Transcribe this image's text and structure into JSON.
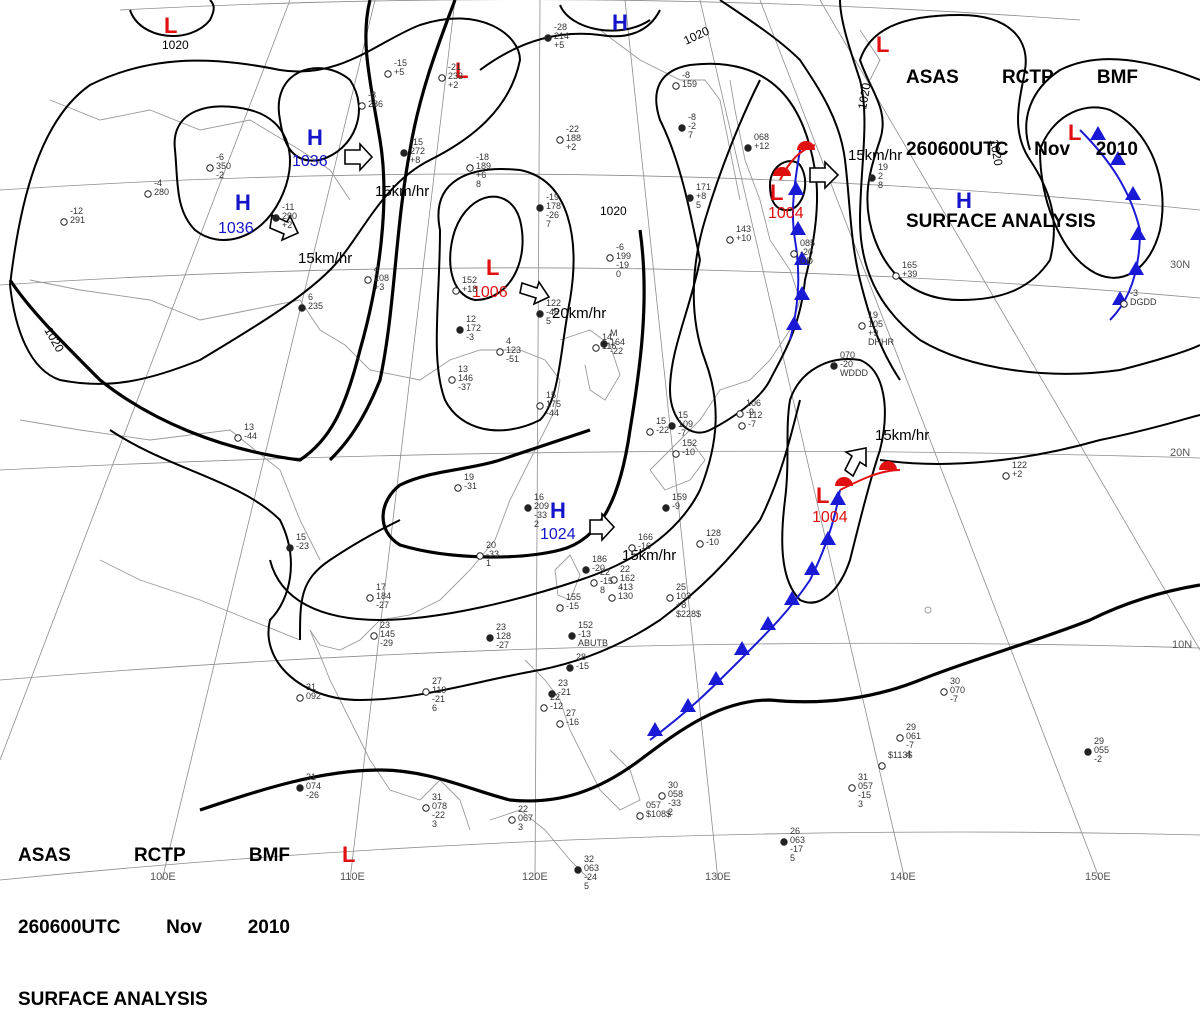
{
  "title": {
    "agency": [
      "ASAS",
      "RCTP",
      "BMF"
    ],
    "time": [
      "260600UTC",
      "Nov",
      "2010"
    ],
    "product": "SURFACE ANALYSIS"
  },
  "pressure_centers": [
    {
      "type": "L",
      "value": "1020",
      "id": "low-nw"
    },
    {
      "type": "H",
      "value": "",
      "id": "high-n"
    },
    {
      "type": "L",
      "value": "",
      "id": "low-north-center"
    },
    {
      "type": "H",
      "value": "1036",
      "id": "high-mongolia"
    },
    {
      "type": "H",
      "value": "1036",
      "id": "high-west"
    },
    {
      "type": "L",
      "value": "1006",
      "id": "low-center"
    },
    {
      "type": "H",
      "value": "1024",
      "id": "high-south"
    },
    {
      "type": "L",
      "value": "1004",
      "id": "low-japan"
    },
    {
      "type": "L",
      "value": "1004",
      "id": "low-pacific"
    },
    {
      "type": "L",
      "value": "",
      "id": "low-ne"
    },
    {
      "type": "L",
      "value": "",
      "id": "low-ne2"
    },
    {
      "type": "H",
      "value": "",
      "id": "high-east"
    },
    {
      "type": "L",
      "value": "",
      "id": "low-sw"
    }
  ],
  "movements": [
    "15km/hr",
    "15km/hr",
    "15km/hr",
    "20km/hr",
    "15km/hr",
    "15km/hr",
    "15km/hr"
  ],
  "isobar_labels": [
    "1020",
    "1020",
    "1020",
    "1020",
    "1020"
  ],
  "axis_labels": {
    "longitude": [
      "100E",
      "110E",
      "120E",
      "130E",
      "140E",
      "150E"
    ],
    "latitude": [
      "30N",
      "20N",
      "10N"
    ]
  },
  "stations": [
    {
      "id": "s1",
      "lines": [
        "-28",
        "214",
        "+5"
      ]
    },
    {
      "id": "s2",
      "lines": [
        "-21",
        "233",
        "+2"
      ]
    },
    {
      "id": "s3",
      "lines": [
        "-8",
        "286"
      ]
    },
    {
      "id": "s4",
      "lines": [
        "-15",
        "272",
        "+8"
      ]
    },
    {
      "id": "s5",
      "lines": [
        "-18",
        "189",
        "+6",
        "8"
      ]
    },
    {
      "id": "s6",
      "lines": [
        "-22",
        "188",
        "+2"
      ]
    },
    {
      "id": "s7",
      "lines": [
        "-19",
        "178",
        "-26",
        "7"
      ]
    },
    {
      "id": "s8",
      "lines": [
        "-6",
        "350",
        "-2"
      ]
    },
    {
      "id": "s9",
      "lines": [
        "-4",
        "280"
      ]
    },
    {
      "id": "s10",
      "lines": [
        "-11",
        "290",
        "+2"
      ]
    },
    {
      "id": "s11",
      "lines": [
        "-12",
        "291"
      ]
    },
    {
      "id": "s12",
      "lines": [
        "4",
        "208",
        "+3"
      ]
    },
    {
      "id": "s13",
      "lines": [
        "6",
        "235"
      ]
    },
    {
      "id": "s14",
      "lines": [
        "152",
        "+18"
      ]
    },
    {
      "id": "s15",
      "lines": [
        "-6",
        "199",
        "-19",
        "0"
      ]
    },
    {
      "id": "s16",
      "lines": [
        "12",
        "172",
        "-3"
      ]
    },
    {
      "id": "s17",
      "lines": [
        "4",
        "123",
        "-51"
      ]
    },
    {
      "id": "s18",
      "lines": [
        "13",
        "146",
        "-37"
      ]
    },
    {
      "id": "s19",
      "lines": [
        "122",
        "-46",
        "5"
      ]
    },
    {
      "id": "s20",
      "lines": [
        "15",
        "175",
        "-44"
      ]
    },
    {
      "id": "s21",
      "lines": [
        "19",
        "-31"
      ]
    },
    {
      "id": "s22",
      "lines": [
        "16",
        "209",
        "-33",
        "2"
      ]
    },
    {
      "id": "s23",
      "lines": [
        "20",
        "-33",
        "1"
      ]
    },
    {
      "id": "s24",
      "lines": [
        "13",
        "-44"
      ]
    },
    {
      "id": "s25",
      "lines": [
        "15",
        "-23"
      ]
    },
    {
      "id": "s26",
      "lines": [
        "17",
        "184",
        "-27"
      ]
    },
    {
      "id": "s27",
      "lines": [
        "23",
        "145",
        "-29"
      ]
    },
    {
      "id": "s28",
      "lines": [
        "23",
        "128",
        "-27"
      ]
    },
    {
      "id": "s29",
      "lines": [
        "27",
        "119",
        "-21",
        "6"
      ]
    },
    {
      "id": "s30",
      "lines": [
        "31",
        "092"
      ]
    },
    {
      "id": "s31",
      "lines": [
        "31",
        "074",
        "-26"
      ]
    },
    {
      "id": "s32",
      "lines": [
        "31",
        "078",
        "-22",
        "3"
      ]
    },
    {
      "id": "s33",
      "lines": [
        "22",
        "067",
        "3"
      ]
    },
    {
      "id": "s34",
      "lines": [
        "32",
        "063",
        "-24",
        "5"
      ]
    },
    {
      "id": "s35",
      "lines": [
        "30",
        "058",
        "-33",
        "2"
      ]
    },
    {
      "id": "s36",
      "lines": [
        "057",
        "$108$"
      ]
    },
    {
      "id": "s37",
      "lines": [
        "26",
        "063",
        "-17",
        "5"
      ]
    },
    {
      "id": "s38",
      "lines": [
        "31",
        "057",
        "-15",
        "3"
      ]
    },
    {
      "id": "s39",
      "lines": [
        "29",
        "061",
        "-7",
        "4"
      ]
    },
    {
      "id": "s40",
      "lines": [
        "29",
        "055",
        "-2"
      ]
    },
    {
      "id": "s41",
      "lines": [
        "30",
        "070",
        "-7"
      ]
    },
    {
      "id": "s42",
      "lines": [
        "122",
        "+2"
      ]
    },
    {
      "id": "s43",
      "lines": [
        "070",
        "-20",
        "WDDD"
      ]
    },
    {
      "id": "s44",
      "lines": [
        "19",
        "105",
        "+9",
        "DHHR"
      ]
    },
    {
      "id": "s45",
      "lines": [
        "165",
        "+39"
      ]
    },
    {
      "id": "s46",
      "lines": [
        "068",
        "+12"
      ]
    },
    {
      "id": "s47",
      "lines": [
        "085",
        "-20",
        "DD"
      ]
    },
    {
      "id": "s48",
      "lines": [
        "143",
        "+10"
      ]
    },
    {
      "id": "s49",
      "lines": [
        "171",
        "+8",
        "5"
      ]
    },
    {
      "id": "s50",
      "lines": [
        "-8",
        "159"
      ]
    },
    {
      "id": "s51",
      "lines": [
        "152",
        "-10"
      ]
    },
    {
      "id": "s52",
      "lines": [
        "159",
        "-9"
      ]
    },
    {
      "id": "s53",
      "lines": [
        "128",
        "-10"
      ]
    },
    {
      "id": "s54",
      "lines": [
        "166",
        "-16"
      ]
    },
    {
      "id": "s55",
      "lines": [
        "186",
        "-20"
      ]
    },
    {
      "id": "s56",
      "lines": [
        "22",
        "162",
        "-13"
      ]
    },
    {
      "id": "s57",
      "lines": [
        "155",
        "-15"
      ]
    },
    {
      "id": "s58",
      "lines": [
        "152",
        "-13",
        "ABUTB"
      ]
    },
    {
      "id": "s59",
      "lines": [
        "4",
        "130"
      ]
    },
    {
      "id": "s60",
      "lines": [
        "25",
        "103",
        "+8",
        "$228$"
      ]
    },
    {
      "id": "s61",
      "lines": [
        "15",
        "109",
        "-7"
      ]
    },
    {
      "id": "s62",
      "lines": [
        "15",
        "-22"
      ]
    },
    {
      "id": "s63",
      "lines": [
        "22",
        "-15",
        "8"
      ]
    },
    {
      "id": "s64",
      "lines": [
        "28",
        "-15"
      ]
    },
    {
      "id": "s65",
      "lines": [
        "106",
        "-9"
      ]
    },
    {
      "id": "s66",
      "lines": [
        "112",
        "-7"
      ]
    },
    {
      "id": "s67",
      "lines": [
        "23",
        "-21"
      ]
    },
    {
      "id": "s68",
      "lines": [
        "22",
        "-12"
      ]
    },
    {
      "id": "s69",
      "lines": [
        "27",
        "-16"
      ]
    },
    {
      "id": "s70",
      "lines": [
        "19",
        "2",
        "8"
      ]
    },
    {
      "id": "s71",
      "lines": [
        "-3",
        "DGDD"
      ]
    },
    {
      "id": "s72",
      "lines": [
        "-15",
        "+5"
      ]
    },
    {
      "id": "s73",
      "lines": [
        "-8",
        "-2",
        "7"
      ]
    },
    {
      "id": "s74",
      "lines": [
        "$113$"
      ]
    },
    {
      "id": "s75",
      "lines": [
        "14",
        "116"
      ]
    },
    {
      "id": "s76",
      "lines": [
        "M",
        "164",
        "-22"
      ]
    }
  ]
}
